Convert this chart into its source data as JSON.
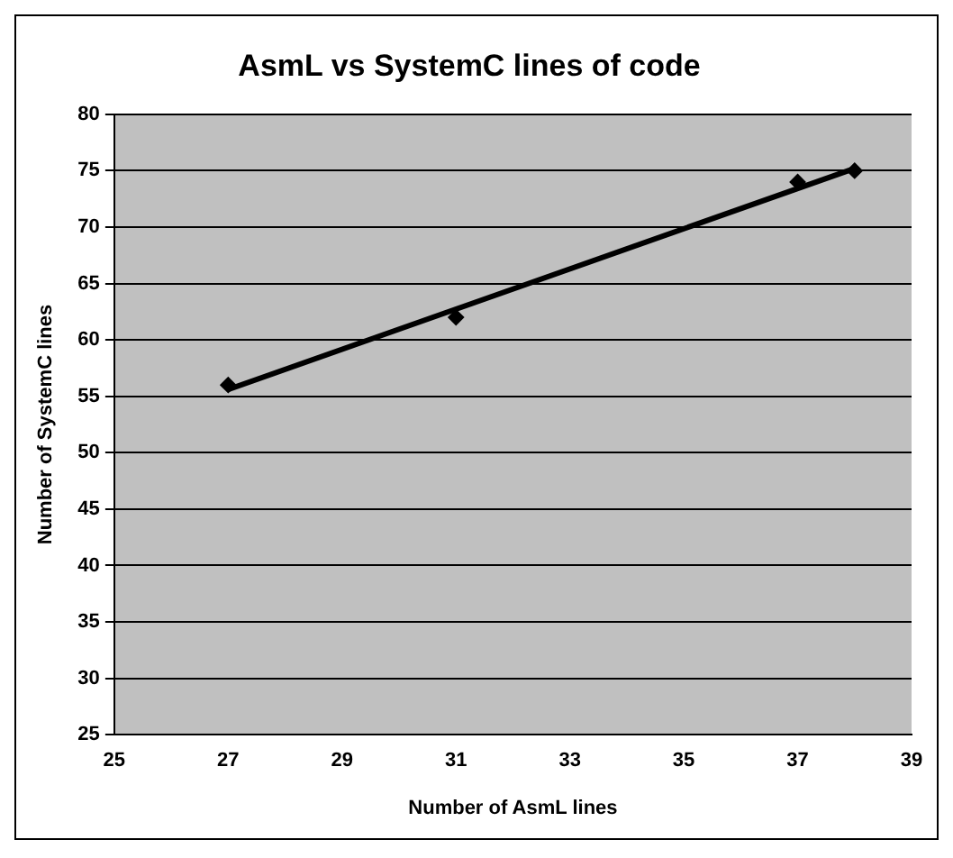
{
  "chart_data": {
    "type": "scatter",
    "title": "AsmL vs SystemC lines of code",
    "xlabel": "Number of AsmL lines",
    "ylabel": "Number of SystemC lines",
    "x": [
      27,
      31,
      37,
      38
    ],
    "series": [
      {
        "color": "#000000",
        "values": [
          56,
          62,
          74,
          75
        ],
        "marker": "diamond"
      },
      {
        "type": "line",
        "color": "#000000",
        "x": [
          27,
          38
        ],
        "values": [
          55.6,
          75.2
        ],
        "marker": "none"
      }
    ],
    "xlim": [
      25,
      39
    ],
    "xticks": [
      25,
      27,
      29,
      31,
      33,
      35,
      37,
      39
    ],
    "ylim": [
      25,
      80
    ],
    "yticks": [
      25,
      30,
      35,
      40,
      45,
      50,
      55,
      60,
      65,
      70,
      75,
      80
    ],
    "grid": "y",
    "legend": false
  }
}
